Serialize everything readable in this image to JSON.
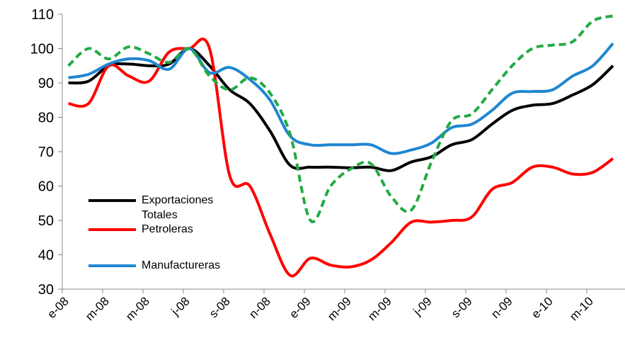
{
  "chart_data": {
    "type": "line",
    "categories": [
      "e-08",
      null,
      "m-08",
      null,
      "m-08",
      null,
      "j-08",
      null,
      "s-08",
      null,
      "n-08",
      null,
      "e-09",
      null,
      "m-09",
      null,
      "m-09",
      null,
      "j-09",
      null,
      "s-09",
      null,
      "n-09",
      null,
      "e-10",
      null,
      "m-10",
      null
    ],
    "series": [
      {
        "name": "Exportaciones Totales",
        "color": "#000000",
        "values": [
          90,
          90.5,
          95,
          95.5,
          95,
          95.5,
          100,
          95,
          88,
          84,
          76,
          66,
          65.5,
          65.5,
          65.3,
          65.5,
          64.5,
          67,
          68.5,
          72,
          73.5,
          78,
          82,
          83.5,
          84,
          86.5,
          89.5,
          95
        ]
      },
      {
        "name": "Petroleras",
        "color": "#ff0000",
        "values": [
          84,
          84,
          95,
          92,
          90.5,
          99,
          100,
          100,
          63,
          60,
          46,
          34,
          39,
          37,
          36.5,
          38.5,
          43.5,
          49.5,
          49.5,
          50,
          51,
          59,
          61,
          65.5,
          65.5,
          63.5,
          64,
          68
        ]
      },
      {
        "name": "Manufactureras",
        "color": "#1f86d1",
        "values": [
          91.5,
          92.5,
          95.5,
          97,
          96.5,
          94,
          100,
          93,
          94.5,
          91,
          85,
          74.5,
          72,
          72,
          72,
          72,
          69.5,
          70.5,
          72.5,
          77,
          78,
          82,
          87,
          87.5,
          88,
          92,
          95,
          101.5
        ]
      },
      {
        "color": "#22aa44",
        "dashed": true,
        "values": [
          95,
          100,
          97,
          100.5,
          98.5,
          96,
          100,
          92,
          88,
          91.5,
          87,
          75,
          50,
          60,
          65,
          66.5,
          57,
          53,
          67,
          79,
          81,
          88,
          95,
          100,
          101,
          102,
          108,
          109.5
        ]
      }
    ],
    "ylim": [
      30,
      110
    ],
    "yticks": [
      30,
      40,
      50,
      60,
      70,
      80,
      90,
      100,
      110
    ]
  }
}
